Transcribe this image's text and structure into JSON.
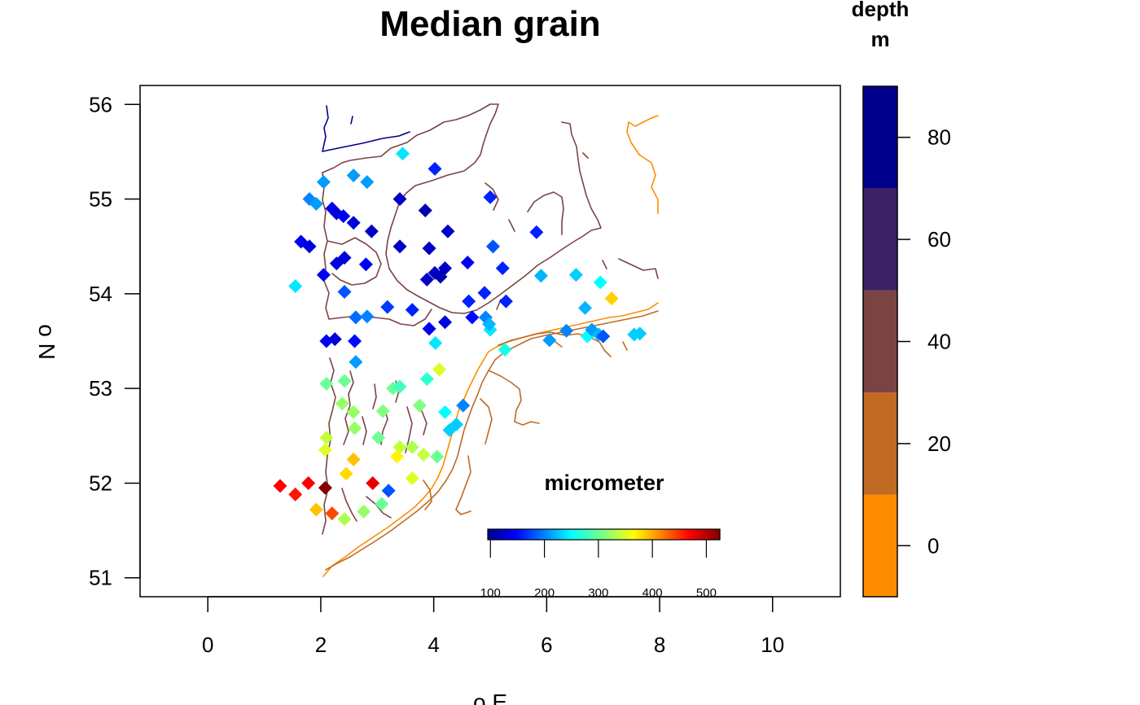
{
  "chart_data": {
    "type": "scatter",
    "title": "Median grain",
    "xlabel": "o E",
    "ylabel": "o N",
    "xlim": [
      -1.2,
      11.2
    ],
    "ylim": [
      50.8,
      56.2
    ],
    "x_ticks": [
      0,
      2,
      4,
      6,
      8,
      10
    ],
    "y_ticks": [
      51,
      52,
      53,
      54,
      55,
      56
    ],
    "depth_legend": {
      "title_line1": "depth",
      "title_line2": "m",
      "ticks": [
        0,
        20,
        40,
        60,
        80
      ],
      "range": [
        -10,
        90
      ],
      "bands": [
        {
          "from": -10,
          "to": 10,
          "color": "#FF8C00"
        },
        {
          "from": 10,
          "to": 30,
          "color": "#C06A24"
        },
        {
          "from": 30,
          "to": 50,
          "color": "#7B4444"
        },
        {
          "from": 50,
          "to": 70,
          "color": "#3C2264"
        },
        {
          "from": 70,
          "to": 90,
          "color": "#00008B"
        }
      ]
    },
    "grain_legend": {
      "title": "micrometer",
      "ticks": [
        100,
        200,
        300,
        400,
        500
      ],
      "range": [
        95,
        525
      ]
    },
    "colors": {
      "c_80": "#00008B",
      "c_60": "#3C2264",
      "c_40": "#7B4444",
      "c_20": "#C06A24",
      "c_0": "#FF8C00"
    },
    "points": [
      [
        1.28,
        51.97,
        470
      ],
      [
        1.55,
        51.88,
        460
      ],
      [
        1.78,
        52.0,
        470
      ],
      [
        2.08,
        51.95,
        525
      ],
      [
        1.92,
        51.72,
        390
      ],
      [
        2.2,
        51.68,
        440
      ],
      [
        2.42,
        51.62,
        330
      ],
      [
        2.76,
        51.7,
        320
      ],
      [
        2.92,
        52.0,
        480
      ],
      [
        3.2,
        51.92,
        180
      ],
      [
        3.08,
        51.78,
        300
      ],
      [
        2.45,
        52.1,
        380
      ],
      [
        2.58,
        52.25,
        390
      ],
      [
        2.08,
        52.35,
        350
      ],
      [
        2.1,
        52.48,
        340
      ],
      [
        2.6,
        52.58,
        320
      ],
      [
        2.58,
        52.75,
        320
      ],
      [
        2.38,
        52.84,
        320
      ],
      [
        2.1,
        53.05,
        300
      ],
      [
        2.42,
        53.08,
        300
      ],
      [
        3.02,
        52.48,
        300
      ],
      [
        3.1,
        52.76,
        310
      ],
      [
        3.28,
        53.0,
        300
      ],
      [
        3.4,
        53.02,
        280
      ],
      [
        3.4,
        52.38,
        340
      ],
      [
        3.62,
        52.38,
        330
      ],
      [
        3.35,
        52.28,
        370
      ],
      [
        3.62,
        52.05,
        350
      ],
      [
        3.82,
        52.3,
        340
      ],
      [
        4.06,
        52.28,
        300
      ],
      [
        3.75,
        52.82,
        310
      ],
      [
        3.88,
        53.1,
        270
      ],
      [
        4.1,
        53.2,
        350
      ],
      [
        4.2,
        52.75,
        250
      ],
      [
        4.28,
        52.56,
        230
      ],
      [
        4.4,
        52.62,
        230
      ],
      [
        4.52,
        52.82,
        200
      ],
      [
        2.1,
        53.5,
        140
      ],
      [
        2.25,
        53.52,
        130
      ],
      [
        2.6,
        53.5,
        150
      ],
      [
        2.62,
        53.28,
        210
      ],
      [
        2.62,
        53.75,
        190
      ],
      [
        2.82,
        53.76,
        200
      ],
      [
        2.42,
        54.02,
        180
      ],
      [
        1.55,
        54.08,
        240
      ],
      [
        3.18,
        53.86,
        170
      ],
      [
        3.62,
        53.83,
        160
      ],
      [
        3.92,
        53.63,
        140
      ],
      [
        4.03,
        53.48,
        240
      ],
      [
        4.2,
        53.7,
        130
      ],
      [
        4.62,
        53.92,
        160
      ],
      [
        4.68,
        53.75,
        150
      ],
      [
        4.9,
        54.01,
        160
      ],
      [
        4.92,
        53.75,
        200
      ],
      [
        5.0,
        53.62,
        240
      ],
      [
        4.98,
        53.68,
        220
      ],
      [
        5.28,
        53.92,
        160
      ],
      [
        5.26,
        53.41,
        260
      ],
      [
        6.05,
        53.51,
        210
      ],
      [
        6.35,
        53.61,
        200
      ],
      [
        6.68,
        53.85,
        220
      ],
      [
        6.72,
        53.55,
        250
      ],
      [
        6.8,
        53.62,
        210
      ],
      [
        6.92,
        53.57,
        220
      ],
      [
        7.0,
        53.55,
        180
      ],
      [
        7.55,
        53.57,
        230
      ],
      [
        7.65,
        53.58,
        230
      ],
      [
        6.52,
        54.2,
        230
      ],
      [
        5.9,
        54.19,
        220
      ],
      [
        6.95,
        54.12,
        250
      ],
      [
        7.15,
        53.95,
        385
      ],
      [
        1.65,
        54.55,
        140
      ],
      [
        1.8,
        54.5,
        130
      ],
      [
        2.28,
        54.32,
        130
      ],
      [
        2.42,
        54.38,
        130
      ],
      [
        2.8,
        54.31,
        140
      ],
      [
        2.05,
        54.2,
        140
      ],
      [
        3.4,
        54.5,
        120
      ],
      [
        3.92,
        54.48,
        120
      ],
      [
        4.02,
        54.22,
        120
      ],
      [
        4.12,
        54.18,
        110
      ],
      [
        4.2,
        54.27,
        120
      ],
      [
        3.88,
        54.15,
        120
      ],
      [
        4.25,
        54.66,
        120
      ],
      [
        4.6,
        54.33,
        140
      ],
      [
        5.05,
        54.5,
        180
      ],
      [
        5.22,
        54.27,
        160
      ],
      [
        5.82,
        54.65,
        160
      ],
      [
        2.9,
        54.66,
        120
      ],
      [
        2.58,
        54.75,
        130
      ],
      [
        2.2,
        54.9,
        140
      ],
      [
        2.28,
        54.85,
        130
      ],
      [
        2.4,
        54.82,
        140
      ],
      [
        1.8,
        55.0,
        200
      ],
      [
        1.92,
        54.95,
        210
      ],
      [
        2.05,
        55.18,
        210
      ],
      [
        2.58,
        55.25,
        210
      ],
      [
        2.82,
        55.18,
        210
      ],
      [
        3.4,
        55.0,
        120
      ],
      [
        3.85,
        54.88,
        110
      ],
      [
        4.02,
        55.32,
        160
      ],
      [
        5.0,
        55.02,
        160
      ],
      [
        3.45,
        55.48,
        240
      ]
    ]
  }
}
